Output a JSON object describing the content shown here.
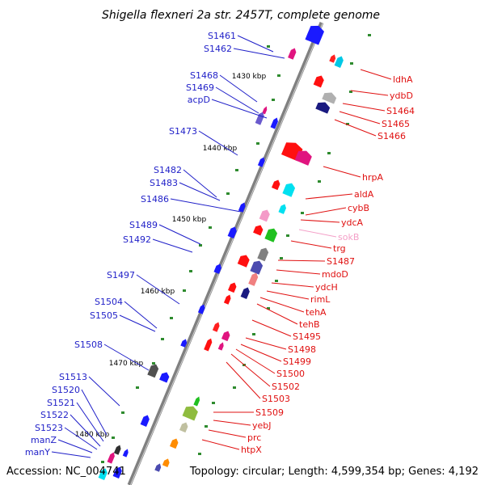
{
  "title": "Shigella flexneri 2a str. 2457T, complete genome",
  "footer": {
    "accession": "Accession: NC_004741",
    "topology": "Topology: circular; Length: 4,599,354 bp; Genes: 4,192"
  },
  "colors": {
    "left_labels": "#1f1fc8",
    "right_labels": "#e01010",
    "faded_label": "#f4a0c8",
    "backbone": "#808080",
    "tick_marks": "#2e8b2e"
  },
  "scale_ticks": [
    "1430 kbp",
    "1440 kbp",
    "1450 kbp",
    "1460 kbp",
    "1470 kbp",
    "1480 kbp"
  ],
  "left_labels": [
    "S1461",
    "S1462",
    "S1468",
    "S1469",
    "acpD",
    "S1473",
    "S1482",
    "S1483",
    "S1486",
    "S1489",
    "S1492",
    "S1497",
    "S1504",
    "S1505",
    "S1508",
    "S1513",
    "S1520",
    "S1521",
    "S1522",
    "S1523",
    "manZ",
    "manY"
  ],
  "right_labels": [
    "ldhA",
    "ydbD",
    "S1464",
    "S1465",
    "S1466",
    "hrpA",
    "aldA",
    "cybB",
    "ydcA",
    "sokB",
    "trg",
    "S1487",
    "mdoD",
    "ydcH",
    "rimL",
    "tehA",
    "tehB",
    "S1495",
    "S1498",
    "S1499",
    "S1500",
    "S1502",
    "S1503",
    "S1509",
    "yebJ",
    "prc",
    "htpX"
  ]
}
